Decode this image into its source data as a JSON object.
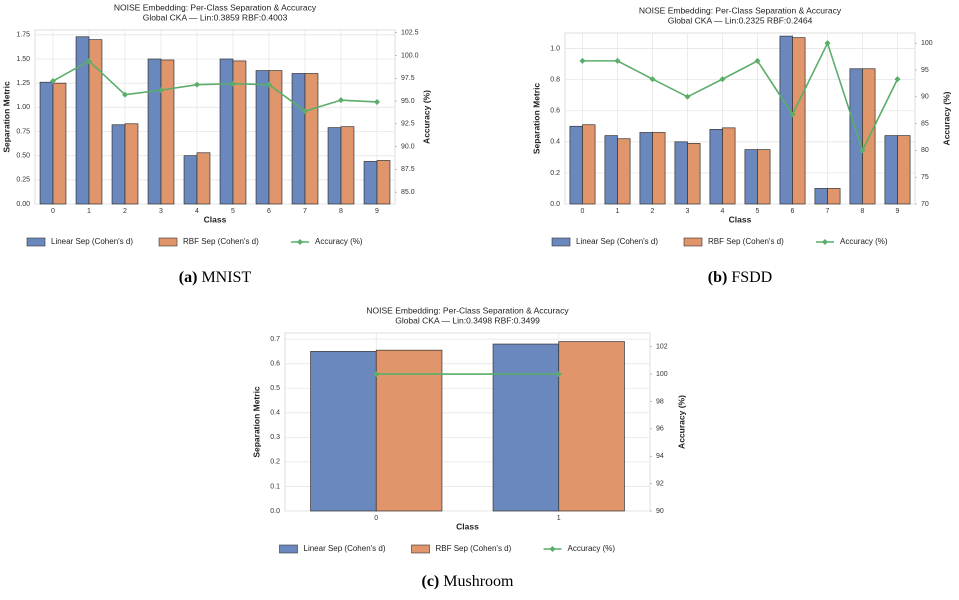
{
  "chart_data": [
    {
      "type": "bar",
      "title": "NOISE Embedding: Per-Class Separation & Accuracy",
      "subtitle": "Global CKA — Lin:0.3859  RBF:0.4003",
      "xlabel": "Class",
      "ylabel": "Separation Metric",
      "y2label": "Accuracy (%)",
      "categories": [
        "0",
        "1",
        "2",
        "3",
        "4",
        "5",
        "6",
        "7",
        "8",
        "9"
      ],
      "series": [
        {
          "name": "Linear Sep (Cohen's d)",
          "color": "#6a88bd",
          "type": "bar",
          "values": [
            1.26,
            1.73,
            0.82,
            1.5,
            0.5,
            1.5,
            1.38,
            1.35,
            0.79,
            0.44
          ]
        },
        {
          "name": "RBF Sep (Cohen's d)",
          "color": "#e0956a",
          "type": "bar",
          "values": [
            1.25,
            1.7,
            0.83,
            1.49,
            0.53,
            1.48,
            1.38,
            1.35,
            0.8,
            0.45
          ]
        },
        {
          "name": "Accuracy (%)",
          "color": "#5aad6a",
          "type": "line",
          "axis": "y2",
          "values": [
            97.2,
            99.4,
            95.7,
            96.2,
            96.8,
            96.9,
            96.8,
            93.9,
            95.1,
            94.9
          ]
        }
      ],
      "ylim": [
        0,
        1.8
      ],
      "yticks": [
        {
          "value": 0,
          "label": "0.00"
        },
        0.25,
        {
          "value": 0.5,
          "label": "0.50"
        },
        0.75,
        {
          "value": 1,
          "label": "1.00"
        },
        1.25,
        {
          "value": 1.5,
          "label": "1.50"
        },
        1.75
      ],
      "y2lim": [
        83.7,
        102.8
      ],
      "y2ticks": [
        {
          "value": 85,
          "label": "85.0"
        },
        87.5,
        {
          "value": 90,
          "label": "90.0"
        },
        92.5,
        {
          "value": 95,
          "label": "95.0"
        },
        97.5,
        {
          "value": 100,
          "label": "100.0"
        },
        102.5
      ],
      "grid": true,
      "legend": "bottom",
      "caption_label": "(a)",
      "caption": "MNIST"
    },
    {
      "type": "bar",
      "title": "NOISE Embedding: Per-Class Separation & Accuracy",
      "subtitle": "Global CKA — Lin:0.2325  RBF:0.2464",
      "xlabel": "Class",
      "ylabel": "Separation Metric",
      "y2label": "Accuracy (%)",
      "categories": [
        "0",
        "1",
        "2",
        "3",
        "4",
        "5",
        "6",
        "7",
        "8",
        "9"
      ],
      "series": [
        {
          "name": "Linear Sep (Cohen's d)",
          "color": "#6a88bd",
          "type": "bar",
          "values": [
            0.5,
            0.44,
            0.46,
            0.4,
            0.48,
            0.35,
            1.08,
            0.1,
            0.87,
            0.44
          ]
        },
        {
          "name": "RBF Sep (Cohen's d)",
          "color": "#e0956a",
          "type": "bar",
          "values": [
            0.51,
            0.42,
            0.46,
            0.39,
            0.49,
            0.35,
            1.07,
            0.1,
            0.87,
            0.44
          ]
        },
        {
          "name": "Accuracy (%)",
          "color": "#5aad6a",
          "type": "line",
          "axis": "y2",
          "values": [
            96.7,
            96.7,
            93.3,
            90.0,
            93.3,
            96.7,
            86.7,
            100.0,
            80.0,
            93.3
          ]
        }
      ],
      "ylim": [
        0,
        1.1
      ],
      "yticks": [
        {
          "value": 0,
          "label": "0.0"
        },
        0.2,
        0.4,
        0.6,
        0.8,
        {
          "value": 1,
          "label": "1.0"
        }
      ],
      "y2lim": [
        70,
        101.9
      ],
      "y2ticks": [
        70,
        75,
        80,
        85,
        90,
        95,
        100
      ],
      "grid": true,
      "legend": "bottom",
      "caption_label": "(b)",
      "caption": "FSDD"
    },
    {
      "type": "bar",
      "title": "NOISE Embedding: Per-Class Separation & Accuracy",
      "subtitle": "Global CKA — Lin:0.3498  RBF:0.3499",
      "xlabel": "Class",
      "ylabel": "Separation Metric",
      "y2label": "Accuracy (%)",
      "categories": [
        "0",
        "1"
      ],
      "series": [
        {
          "name": "Linear Sep (Cohen's d)",
          "color": "#6a88bd",
          "type": "bar",
          "values": [
            0.65,
            0.68
          ]
        },
        {
          "name": "RBF Sep (Cohen's d)",
          "color": "#e0956a",
          "type": "bar",
          "values": [
            0.655,
            0.69
          ]
        },
        {
          "name": "Accuracy (%)",
          "color": "#5aad6a",
          "type": "line",
          "axis": "y2",
          "values": [
            100,
            100
          ]
        }
      ],
      "ylim": [
        0,
        0.725
      ],
      "yticks": [
        {
          "value": 0,
          "label": "0.0"
        },
        0.1,
        0.2,
        0.3,
        0.4,
        0.5,
        0.6,
        0.7
      ],
      "y2lim": [
        90,
        103
      ],
      "y2ticks": [
        90,
        92,
        94,
        96,
        98,
        100,
        102
      ],
      "grid": true,
      "legend": "bottom",
      "caption_label": "(c)",
      "caption": "Mushroom"
    }
  ]
}
